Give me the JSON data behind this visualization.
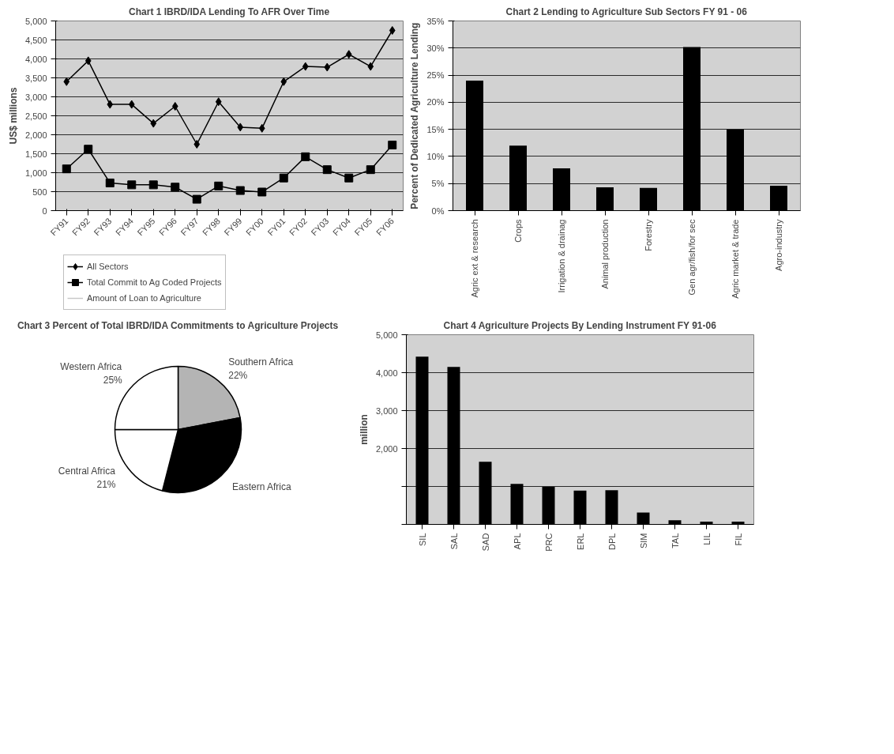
{
  "chart_data": [
    {
      "type": "line",
      "title": "Chart 1 IBRD/IDA Lending To AFR Over Time",
      "ylabel": "US$ millions",
      "categories": [
        "FY91",
        "FY92",
        "FY93",
        "FY94",
        "FY95",
        "FY96",
        "FY97",
        "FY98",
        "FY99",
        "FY00",
        "FY01",
        "FY02",
        "FY03",
        "FY04",
        "FY05",
        "FY06"
      ],
      "series": [
        {
          "name": "All Sectors",
          "color": "#000000",
          "marker": "diamond",
          "values": [
            3400,
            3950,
            2800,
            2800,
            2300,
            2750,
            1750,
            2870,
            2200,
            2170,
            3400,
            3800,
            3780,
            4120,
            3800,
            4750
          ]
        },
        {
          "name": "Total Commit to Ag Coded Projects",
          "color": "#000000",
          "marker": "square",
          "values": [
            1100,
            1620,
            730,
            680,
            680,
            620,
            300,
            650,
            530,
            490,
            860,
            1420,
            1080,
            860,
            1080,
            1730
          ]
        },
        {
          "name": "Amount of Loan to Agriculture",
          "color": "#c8c8c8",
          "marker": "none",
          "values": [
            null,
            null,
            null,
            null,
            null,
            null,
            null,
            null,
            null,
            null,
            null,
            null,
            null,
            null,
            null,
            null
          ]
        }
      ],
      "ylim": [
        0,
        5000
      ],
      "yticks": [
        {
          "value": 0,
          "label": "0"
        },
        {
          "value": 500,
          "label": "500"
        },
        {
          "value": 1000,
          "label": "1,000"
        },
        {
          "value": 1500,
          "label": "1,500"
        },
        {
          "value": 2000,
          "label": "2,000"
        },
        {
          "value": 2500,
          "label": "2,500"
        },
        {
          "value": 3000,
          "label": "3,000"
        },
        {
          "value": 3500,
          "label": "3,500"
        },
        {
          "value": 4000,
          "label": "4,000"
        },
        {
          "value": 4500,
          "label": "4,500"
        },
        {
          "value": 5000,
          "label": "5,000"
        }
      ],
      "grid": "y",
      "legend": "bottom"
    },
    {
      "type": "bar",
      "title": "Chart 2 Lending to Agriculture Sub Sectors FY 91 - 06",
      "ylabel": "Percent of Dedicated Agriculture Lending",
      "categories": [
        "Agric ext & research",
        "Crops",
        "Irrigation & drainag",
        "Animal production",
        "Forestry",
        "Gen agr/fish/for sec",
        "Agric market & trade",
        "Agro-industry"
      ],
      "values": [
        24,
        12,
        7.8,
        4.3,
        4.2,
        30.2,
        15,
        4.6
      ],
      "color": "#000000",
      "ylim": [
        0,
        35
      ],
      "yticks": [
        {
          "value": 0,
          "label": "0%"
        },
        {
          "value": 5,
          "label": "5%"
        },
        {
          "value": 10,
          "label": "10%"
        },
        {
          "value": 15,
          "label": "15%"
        },
        {
          "value": 20,
          "label": "20%"
        },
        {
          "value": 25,
          "label": "25%"
        },
        {
          "value": 30,
          "label": "30%"
        },
        {
          "value": 35,
          "label": "35%"
        }
      ],
      "grid": "y"
    },
    {
      "type": "pie",
      "title": "Chart 3 Percent of Total IBRD/IDA Commitments to Agriculture Projects",
      "categories": [
        "Southern Africa",
        "Eastern Africa",
        "Central Africa",
        "Western Africa"
      ],
      "values": [
        22,
        32,
        21,
        25
      ],
      "colors": [
        "#b4b4b4",
        "#000000",
        "#ffffff",
        "#ffffff"
      ],
      "value_labels": [
        "22%",
        null,
        "21%",
        "25%"
      ]
    },
    {
      "type": "bar",
      "title": "Chart 4 Agriculture Projects By Lending Instrument FY 91-06",
      "ylabel": "million",
      "categories": [
        "SIL",
        "SAL",
        "SAD",
        "APL",
        "PRC",
        "ERL",
        "DPL",
        "SIM",
        "TAL",
        "LIL",
        "FIL"
      ],
      "values": [
        4420,
        4150,
        1650,
        1070,
        990,
        890,
        900,
        315,
        110,
        75,
        75
      ],
      "color": "#000000",
      "ylim": [
        0,
        5000
      ],
      "yticks": [
        {
          "value": 0,
          "label": null
        },
        {
          "value": 1000,
          "label": null
        },
        {
          "value": 2000,
          "label": "2,000"
        },
        {
          "value": 3000,
          "label": "3,000"
        },
        {
          "value": 4000,
          "label": "4,000"
        },
        {
          "value": 5000,
          "label": "5,000"
        }
      ],
      "grid": "y"
    }
  ]
}
